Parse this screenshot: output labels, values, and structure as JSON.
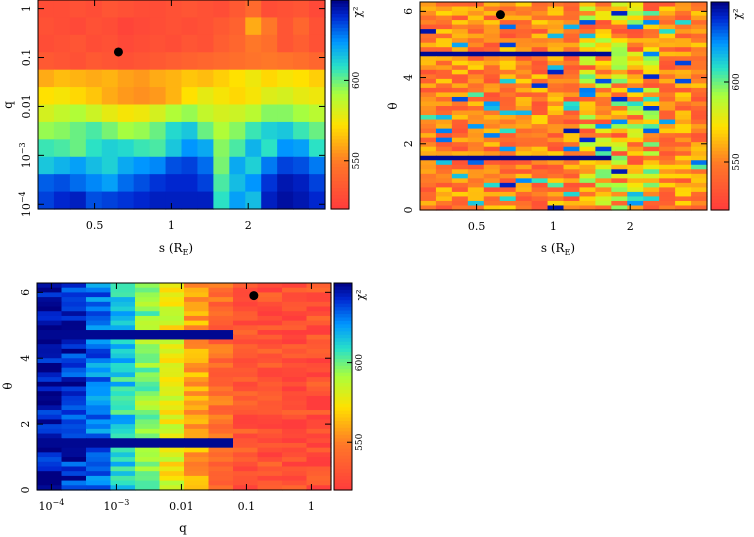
{
  "chart_data": [
    {
      "type": "heatmap",
      "id": "panel-s-q",
      "title": "",
      "xlabel": "s (R_E)",
      "ylabel": "q",
      "xscale": "log",
      "xlim": [
        0.3,
        4.0
      ],
      "yscale": "log",
      "ylim": [
        8e-05,
        1.5
      ],
      "xticks": [
        {
          "value": 0.5,
          "label": "0.5"
        },
        {
          "value": 1,
          "label": "1"
        },
        {
          "value": 2,
          "label": "2"
        }
      ],
      "yticks": [
        {
          "value": 0.0001,
          "label": "10^-4",
          "mant": "10",
          "exp": "−4"
        },
        {
          "value": 0.001,
          "label": "10^-3",
          "mant": "10",
          "exp": "−3"
        },
        {
          "value": 0.01,
          "label": "0.01"
        },
        {
          "value": 0.1,
          "label": "0.1"
        },
        {
          "value": 1,
          "label": "1"
        }
      ],
      "grid": false,
      "best_fit": {
        "x": 0.62,
        "y": 0.13
      },
      "chi2": [
        [
          528,
          528,
          530,
          528,
          532,
          530,
          528,
          528,
          530,
          532,
          530,
          528,
          534,
          542,
          528,
          530,
          532,
          526
        ],
        [
          530,
          528,
          526,
          530,
          528,
          524,
          526,
          528,
          530,
          528,
          530,
          534,
          538,
          560,
          548,
          532,
          540,
          530
        ],
        [
          528,
          530,
          532,
          528,
          530,
          526,
          528,
          530,
          528,
          532,
          530,
          536,
          540,
          548,
          544,
          532,
          536,
          530
        ],
        [
          534,
          532,
          530,
          534,
          532,
          530,
          532,
          534,
          536,
          538,
          540,
          542,
          544,
          546,
          548,
          546,
          544,
          540
        ],
        [
          560,
          564,
          562,
          560,
          562,
          558,
          556,
          560,
          562,
          566,
          564,
          568,
          572,
          576,
          570,
          574,
          572,
          568
        ],
        [
          572,
          574,
          570,
          566,
          560,
          556,
          554,
          556,
          562,
          572,
          578,
          574,
          570,
          574,
          580,
          582,
          578,
          576
        ],
        [
          582,
          586,
          590,
          584,
          578,
          574,
          576,
          582,
          590,
          594,
          586,
          582,
          584,
          588,
          596,
          596,
          592,
          588
        ],
        [
          594,
          596,
          600,
          604,
          598,
          592,
          594,
          600,
          610,
          614,
          600,
          590,
          596,
          606,
          612,
          614,
          606,
          600
        ],
        [
          606,
          604,
          600,
          608,
          612,
          610,
          606,
          604,
          614,
          624,
          620,
          596,
          604,
          618,
          608,
          624,
          622,
          608
        ],
        [
          614,
          618,
          622,
          616,
          612,
          620,
          624,
          626,
          634,
          636,
          630,
          598,
          620,
          612,
          628,
          636,
          634,
          628
        ],
        [
          632,
          634,
          630,
          626,
          622,
          630,
          634,
          638,
          640,
          640,
          636,
          604,
          616,
          624,
          638,
          644,
          642,
          636
        ],
        [
          636,
          640,
          642,
          634,
          636,
          638,
          640,
          642,
          642,
          642,
          642,
          608,
          622,
          616,
          642,
          646,
          644,
          640
        ]
      ],
      "colorbar": {
        "label": "χ²",
        "range": [
          520,
          650
        ],
        "ticks": [
          {
            "value": 550,
            "label": "550"
          },
          {
            "value": 600,
            "label": "600"
          }
        ]
      }
    },
    {
      "type": "heatmap",
      "id": "panel-s-theta",
      "title": "",
      "xlabel": "s (R_E)",
      "ylabel": "θ",
      "xscale": "log",
      "xlim": [
        0.3,
        4.0
      ],
      "ylim": [
        0,
        6.283
      ],
      "xticks": [
        {
          "value": 0.5,
          "label": "0.5"
        },
        {
          "value": 1,
          "label": "1"
        },
        {
          "value": 2,
          "label": "2"
        }
      ],
      "yticks": [
        {
          "value": 0,
          "label": "0"
        },
        {
          "value": 2,
          "label": "2"
        },
        {
          "value": 4,
          "label": "4"
        },
        {
          "value": 6,
          "label": "6"
        }
      ],
      "grid": false,
      "best_fit": {
        "x": 0.62,
        "y": 5.9
      },
      "chi2_seed": 11,
      "dark_bands": [
        {
          "theta": 1.57,
          "value": 648
        },
        {
          "theta": 4.73,
          "value": 648
        }
      ],
      "colorbar": {
        "label": "χ²",
        "range": [
          520,
          650
        ],
        "ticks": [
          {
            "value": 550,
            "label": "550"
          },
          {
            "value": 600,
            "label": "600"
          }
        ]
      }
    },
    {
      "type": "heatmap",
      "id": "panel-q-theta",
      "title": "",
      "xlabel": "q",
      "ylabel": "θ",
      "xscale": "log",
      "xlim": [
        6e-05,
        2.0
      ],
      "ylim": [
        0,
        6.283
      ],
      "xticks": [
        {
          "value": 0.0001,
          "label": "10^-4",
          "mant": "10",
          "exp": "−4"
        },
        {
          "value": 0.001,
          "label": "10^-3",
          "mant": "10",
          "exp": "−3"
        },
        {
          "value": 0.01,
          "label": "0.01"
        },
        {
          "value": 0.1,
          "label": "0.1"
        },
        {
          "value": 1,
          "label": "1"
        }
      ],
      "yticks": [
        {
          "value": 0,
          "label": "0"
        },
        {
          "value": 2,
          "label": "2"
        },
        {
          "value": 4,
          "label": "4"
        },
        {
          "value": 6,
          "label": "6"
        }
      ],
      "grid": false,
      "best_fit": {
        "x": 0.13,
        "y": 5.9
      },
      "column_levels": [
        646,
        640,
        628,
        612,
        596,
        578,
        560,
        542,
        534,
        530,
        528,
        530
      ],
      "dark_bands": [
        {
          "theta": 1.45,
          "value": 648
        },
        {
          "theta": 4.73,
          "value": 648
        }
      ],
      "chi2_seed": 7,
      "colorbar": {
        "label": "χ²",
        "range": [
          520,
          650
        ],
        "ticks": [
          {
            "value": 550,
            "label": "550"
          },
          {
            "value": 600,
            "label": "600"
          }
        ]
      }
    }
  ]
}
